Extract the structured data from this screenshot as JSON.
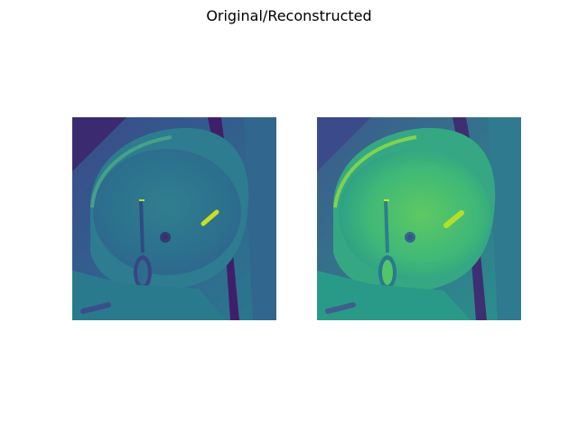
{
  "figure": {
    "title": "Original/Reconstructed"
  },
  "panels": [
    {
      "name": "original",
      "colormap": "viridis"
    },
    {
      "name": "reconstructed",
      "colormap": "viridis"
    }
  ],
  "colors": {
    "background": "#ffffff",
    "viridis_dark": "#440154",
    "viridis_mid": "#21918c",
    "viridis_bright": "#fde725"
  }
}
